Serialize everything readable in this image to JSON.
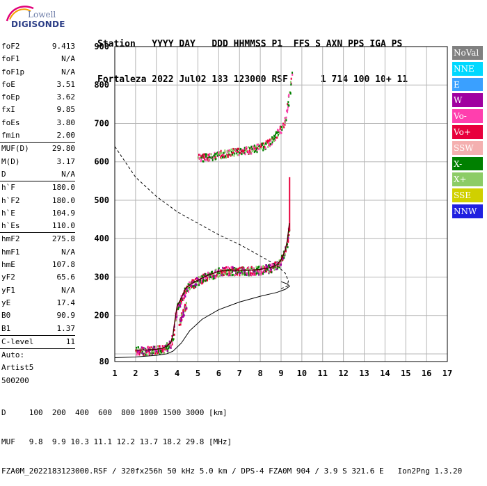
{
  "logo": {
    "line1": "Lowell",
    "line2": "DIGISONDE"
  },
  "header": {
    "line1": "Station   YYYY DAY   DDD HHMMSS P1  FFS S AXN PPS IGA PS",
    "line2": "Fortaleza 2022 Jul02 183 123000 RSF      1 714 100 10+ 11"
  },
  "params_a": [
    {
      "k": "foF2",
      "v": "9.413"
    },
    {
      "k": "foF1",
      "v": "N/A"
    },
    {
      "k": "foF1p",
      "v": "N/A"
    },
    {
      "k": "foE",
      "v": "3.51"
    },
    {
      "k": "foEp",
      "v": "3.62"
    },
    {
      "k": "fxI",
      "v": "9.85"
    },
    {
      "k": "foEs",
      "v": "3.80"
    },
    {
      "k": "fmin",
      "v": "2.00"
    }
  ],
  "params_b": [
    {
      "k": "MUF(D)",
      "v": "29.80"
    },
    {
      "k": "M(D)",
      "v": "3.17"
    },
    {
      "k": "D",
      "v": "N/A"
    }
  ],
  "params_c": [
    {
      "k": "h`F",
      "v": "180.0"
    },
    {
      "k": "h`F2",
      "v": "180.0"
    },
    {
      "k": "h`E",
      "v": "104.9"
    },
    {
      "k": "h`Es",
      "v": "110.0"
    }
  ],
  "params_d": [
    {
      "k": "hmF2",
      "v": "275.8"
    },
    {
      "k": "hmF1",
      "v": "N/A"
    },
    {
      "k": "hmE",
      "v": "107.8"
    },
    {
      "k": "yF2",
      "v": "65.6"
    },
    {
      "k": "yF1",
      "v": "N/A"
    },
    {
      "k": "yE",
      "v": "17.4"
    },
    {
      "k": "B0",
      "v": "90.9"
    },
    {
      "k": "B1",
      "v": "1.37"
    }
  ],
  "params_e": [
    {
      "k": "C-level",
      "v": "11"
    }
  ],
  "auto": {
    "l1": "Auto:",
    "l2": "Artist5",
    "l3": "500200"
  },
  "legend": [
    {
      "label": "NoVal",
      "color": "#808080"
    },
    {
      "label": "NNE",
      "color": "#00d8ff"
    },
    {
      "label": "E",
      "color": "#3aa0ff"
    },
    {
      "label": "W",
      "color": "#a000a0"
    },
    {
      "label": "Vo-",
      "color": "#ff3fae"
    },
    {
      "label": "Vo+",
      "color": "#e8003c"
    },
    {
      "label": "SSW",
      "color": "#f4b0b0"
    },
    {
      "label": "X-",
      "color": "#008000"
    },
    {
      "label": "X+",
      "color": "#8ccc66"
    },
    {
      "label": "SSE",
      "color": "#d0d000"
    },
    {
      "label": "NNW",
      "color": "#2020e0"
    }
  ],
  "footer": {
    "line1": "D     100  200  400  600  800 1000 1500 3000 [km]",
    "line2": "MUF   9.8  9.9 10.3 11.1 12.2 13.7 18.2 29.8 [MHz]",
    "line3": "FZA0M_2022183123000.RSF / 320fx256h 50 kHz 5.0 km / DPS-4 FZA0M 904 / 3.9 S 321.6 E   Ion2Png 1.3.20"
  },
  "chart_data": {
    "type": "scatter",
    "xlim": [
      1,
      17
    ],
    "ylim": [
      80,
      900
    ],
    "x_ticks": [
      1,
      2,
      3,
      4,
      5,
      6,
      7,
      8,
      9,
      10,
      11,
      12,
      13,
      14,
      15,
      16,
      17
    ],
    "y_ticks": [
      80,
      200,
      300,
      400,
      500,
      600,
      700,
      800,
      900
    ],
    "grid": true,
    "trace_F": {
      "x": [
        2.0,
        2.5,
        3.0,
        3.3,
        3.5,
        3.7,
        3.8,
        3.9,
        4.0,
        4.2,
        4.4,
        4.6,
        5.0,
        5.5,
        6.0,
        6.5,
        7.0,
        7.5,
        8.0,
        8.5,
        8.8,
        9.0,
        9.2,
        9.3,
        9.4
      ],
      "y": [
        110,
        110,
        112,
        115,
        120,
        130,
        150,
        190,
        225,
        245,
        270,
        280,
        292,
        305,
        315,
        318,
        318,
        318,
        320,
        325,
        332,
        345,
        370,
        395,
        440
      ]
    },
    "trace_F_upper": {
      "x": [
        5.0,
        5.5,
        6.0,
        6.5,
        7.0,
        7.5,
        8.0,
        8.5,
        9.0,
        9.2,
        9.4,
        9.5
      ],
      "y": [
        612,
        615,
        620,
        625,
        630,
        633,
        640,
        655,
        690,
        720,
        780,
        840
      ]
    },
    "trace_E_layer": {
      "x": [
        4.1,
        4.2,
        4.3,
        4.4
      ],
      "y": [
        185,
        200,
        215,
        230
      ]
    },
    "profile_solid": {
      "x": [
        1.0,
        2.0,
        3.0,
        3.5,
        3.8,
        4.2,
        4.6,
        5.2,
        6.0,
        7.0,
        8.0,
        8.8,
        9.2,
        9.41,
        9.3,
        9.0
      ],
      "y": [
        90,
        92,
        96,
        100,
        107,
        128,
        160,
        190,
        215,
        235,
        250,
        260,
        268,
        276,
        282,
        288
      ]
    },
    "profile_dashed": {
      "x": [
        1.0,
        2.0,
        3.0,
        4.0,
        5.0,
        6.0,
        7.0,
        8.0,
        8.8,
        9.2,
        9.35,
        9.3,
        9.0
      ],
      "y": [
        640,
        560,
        510,
        470,
        440,
        410,
        385,
        355,
        330,
        310,
        290,
        276,
        270
      ]
    },
    "vertical_segment": {
      "x": 9.41,
      "y": [
        420,
        560
      ]
    }
  }
}
